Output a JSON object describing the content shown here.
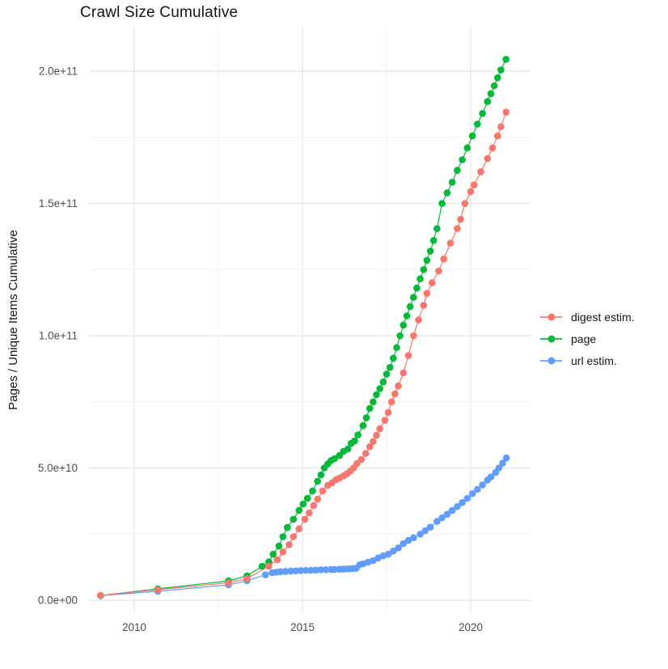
{
  "chart_data": {
    "type": "scatter-line",
    "title": "Crawl Size Cumulative",
    "xlabel": "",
    "ylabel": "Pages / Unique Items Cumulative",
    "grid": true,
    "legend_position": "right",
    "value_unit": "1e9 (points stored as [year, value in billions])",
    "x_axis": {
      "ticks": [
        {
          "label": "2010",
          "year": 2010
        },
        {
          "label": "2015",
          "year": 2015
        },
        {
          "label": "2020",
          "year": 2020
        }
      ],
      "minor_years": [
        2012.5,
        2017.5
      ],
      "range_years": [
        2008.65,
        2021.75
      ]
    },
    "y_axis": {
      "ticks": [
        {
          "label": "0.0e+00",
          "e9": 0
        },
        {
          "label": "5.0e+10",
          "e9": 50
        },
        {
          "label": "1.0e+11",
          "e9": 100
        },
        {
          "label": "1.5e+11",
          "e9": 150
        },
        {
          "label": "2.0e+11",
          "e9": 200
        }
      ],
      "minor_e9": [
        25,
        75,
        125,
        175
      ],
      "range_e9": [
        -4.3,
        216.5
      ]
    },
    "series": [
      {
        "name": "digest estim.",
        "color": "#F8766D",
        "points": [
          [
            2009.0,
            1.8
          ],
          [
            2010.7,
            4.0
          ],
          [
            2012.8,
            6.6
          ],
          [
            2013.35,
            8.2
          ],
          [
            2014.0,
            12.8
          ],
          [
            2014.25,
            15.3
          ],
          [
            2014.42,
            18.3
          ],
          [
            2014.6,
            21.0
          ],
          [
            2014.73,
            24.0
          ],
          [
            2014.9,
            27.0
          ],
          [
            2015.07,
            30.6
          ],
          [
            2015.2,
            33.0
          ],
          [
            2015.33,
            35.8
          ],
          [
            2015.45,
            38.2
          ],
          [
            2015.6,
            41.3
          ],
          [
            2015.75,
            43.4
          ],
          [
            2015.88,
            44.4
          ],
          [
            2016.0,
            45.6
          ],
          [
            2016.1,
            46.2
          ],
          [
            2016.22,
            47.0
          ],
          [
            2016.32,
            47.8
          ],
          [
            2016.42,
            48.8
          ],
          [
            2016.52,
            50.0
          ],
          [
            2016.62,
            51.7
          ],
          [
            2016.75,
            53.2
          ],
          [
            2016.88,
            55.5
          ],
          [
            2017.0,
            58.0
          ],
          [
            2017.1,
            60.0
          ],
          [
            2017.2,
            62.4
          ],
          [
            2017.3,
            64.8
          ],
          [
            2017.45,
            68.0
          ],
          [
            2017.55,
            71.0
          ],
          [
            2017.65,
            75.0
          ],
          [
            2017.75,
            78.0
          ],
          [
            2017.85,
            81.0
          ],
          [
            2018.0,
            86.0
          ],
          [
            2018.15,
            92.5
          ],
          [
            2018.3,
            100.0
          ],
          [
            2018.45,
            106.0
          ],
          [
            2018.6,
            111.5
          ],
          [
            2018.7,
            116.0
          ],
          [
            2018.85,
            120.0
          ],
          [
            2019.05,
            124.5
          ],
          [
            2019.2,
            129.0
          ],
          [
            2019.4,
            135.0
          ],
          [
            2019.6,
            140.5
          ],
          [
            2019.7,
            144.0
          ],
          [
            2019.83,
            150.0
          ],
          [
            2020.0,
            154.5
          ],
          [
            2020.1,
            157.0
          ],
          [
            2020.3,
            162.0
          ],
          [
            2020.5,
            167.0
          ],
          [
            2020.65,
            171.0
          ],
          [
            2020.8,
            175.5
          ],
          [
            2020.9,
            179.0
          ],
          [
            2021.05,
            184.5
          ]
        ]
      },
      {
        "name": "page",
        "color": "#00BA38",
        "points": [
          [
            2009.0,
            1.8
          ],
          [
            2010.7,
            4.3
          ],
          [
            2012.8,
            7.3
          ],
          [
            2013.35,
            9.2
          ],
          [
            2013.8,
            12.8
          ],
          [
            2014.0,
            14.5
          ],
          [
            2014.13,
            17.4
          ],
          [
            2014.3,
            20.5
          ],
          [
            2014.42,
            24.0
          ],
          [
            2014.55,
            27.5
          ],
          [
            2014.73,
            30.6
          ],
          [
            2014.9,
            34.0
          ],
          [
            2015.02,
            36.4
          ],
          [
            2015.15,
            38.5
          ],
          [
            2015.3,
            41.3
          ],
          [
            2015.45,
            45.0
          ],
          [
            2015.55,
            47.4
          ],
          [
            2015.65,
            50.0
          ],
          [
            2015.75,
            51.5
          ],
          [
            2015.85,
            52.8
          ],
          [
            2015.95,
            53.5
          ],
          [
            2016.1,
            54.7
          ],
          [
            2016.22,
            56.3
          ],
          [
            2016.35,
            57.2
          ],
          [
            2016.45,
            59.3
          ],
          [
            2016.55,
            60.2
          ],
          [
            2016.65,
            62.5
          ],
          [
            2016.8,
            66.0
          ],
          [
            2016.9,
            69.0
          ],
          [
            2017.0,
            72.5
          ],
          [
            2017.1,
            75.0
          ],
          [
            2017.2,
            77.7
          ],
          [
            2017.3,
            80.0
          ],
          [
            2017.4,
            82.5
          ],
          [
            2017.5,
            85.5
          ],
          [
            2017.6,
            88.0
          ],
          [
            2017.7,
            91.5
          ],
          [
            2017.8,
            95.5
          ],
          [
            2017.9,
            100.0
          ],
          [
            2018.0,
            104.0
          ],
          [
            2018.1,
            107.5
          ],
          [
            2018.2,
            111.0
          ],
          [
            2018.3,
            114.5
          ],
          [
            2018.4,
            118.0
          ],
          [
            2018.5,
            121.5
          ],
          [
            2018.6,
            125.0
          ],
          [
            2018.7,
            128.5
          ],
          [
            2018.8,
            132.0
          ],
          [
            2018.9,
            136.0
          ],
          [
            2019.0,
            140.5
          ],
          [
            2019.15,
            150.0
          ],
          [
            2019.3,
            154.0
          ],
          [
            2019.45,
            158.0
          ],
          [
            2019.6,
            162.5
          ],
          [
            2019.75,
            166.5
          ],
          [
            2019.9,
            171.0
          ],
          [
            2020.05,
            175.5
          ],
          [
            2020.2,
            180.0
          ],
          [
            2020.35,
            184.0
          ],
          [
            2020.5,
            188.5
          ],
          [
            2020.6,
            191.5
          ],
          [
            2020.7,
            194.5
          ],
          [
            2020.8,
            197.5
          ],
          [
            2020.9,
            200.5
          ],
          [
            2021.05,
            204.5
          ]
        ]
      },
      {
        "name": "url estim.",
        "color": "#619CFF",
        "points": [
          [
            2009.0,
            1.7
          ],
          [
            2010.7,
            3.4
          ],
          [
            2012.8,
            5.8
          ],
          [
            2013.35,
            7.4
          ],
          [
            2013.9,
            9.6
          ],
          [
            2014.1,
            10.4
          ],
          [
            2014.22,
            10.6
          ],
          [
            2014.35,
            10.8
          ],
          [
            2014.5,
            10.9
          ],
          [
            2014.65,
            11.0
          ],
          [
            2014.8,
            11.1
          ],
          [
            2014.95,
            11.2
          ],
          [
            2015.1,
            11.3
          ],
          [
            2015.25,
            11.35
          ],
          [
            2015.4,
            11.4
          ],
          [
            2015.55,
            11.5
          ],
          [
            2015.7,
            11.55
          ],
          [
            2015.85,
            11.6
          ],
          [
            2015.95,
            11.65
          ],
          [
            2016.1,
            11.7
          ],
          [
            2016.2,
            11.75
          ],
          [
            2016.3,
            11.8
          ],
          [
            2016.4,
            11.9
          ],
          [
            2016.5,
            12.0
          ],
          [
            2016.6,
            12.1
          ],
          [
            2016.7,
            13.4
          ],
          [
            2016.8,
            13.8
          ],
          [
            2016.95,
            14.4
          ],
          [
            2017.1,
            15.0
          ],
          [
            2017.25,
            16.0
          ],
          [
            2017.4,
            16.8
          ],
          [
            2017.55,
            17.4
          ],
          [
            2017.7,
            18.6
          ],
          [
            2017.85,
            19.8
          ],
          [
            2018.0,
            21.4
          ],
          [
            2018.15,
            22.6
          ],
          [
            2018.3,
            23.6
          ],
          [
            2018.5,
            25.0
          ],
          [
            2018.65,
            26.3
          ],
          [
            2018.8,
            27.6
          ],
          [
            2019.0,
            29.8
          ],
          [
            2019.15,
            31.2
          ],
          [
            2019.3,
            32.5
          ],
          [
            2019.45,
            33.9
          ],
          [
            2019.6,
            35.4
          ],
          [
            2019.75,
            36.9
          ],
          [
            2019.9,
            38.5
          ],
          [
            2020.05,
            40.3
          ],
          [
            2020.2,
            41.9
          ],
          [
            2020.35,
            43.6
          ],
          [
            2020.5,
            45.4
          ],
          [
            2020.6,
            46.6
          ],
          [
            2020.74,
            48.3
          ],
          [
            2020.84,
            50.0
          ],
          [
            2020.95,
            51.8
          ],
          [
            2021.06,
            53.8
          ]
        ]
      }
    ]
  }
}
